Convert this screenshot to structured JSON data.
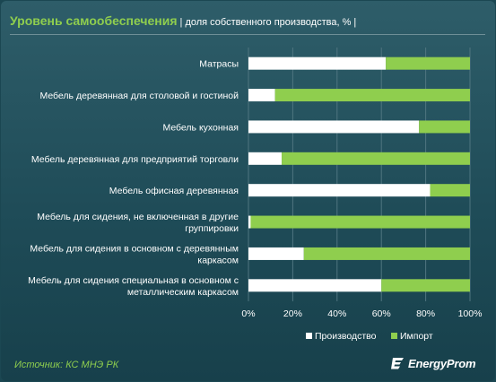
{
  "title": "Уровень самообеспечения",
  "subtitle": "| доля собственного производства, % |",
  "source": "Источник: КС МНЭ РК",
  "brand": "EnergyProm",
  "colors": {
    "production": "#ffffff",
    "import": "#8fce4e",
    "accent": "#8fce4e",
    "background": "#244f5b"
  },
  "chart_data": {
    "type": "bar",
    "orientation": "horizontal",
    "stacked": true,
    "categories": [
      [
        "Матрасы"
      ],
      [
        "Мебель деревянная для столовой и гостиной"
      ],
      [
        "Мебель кухонная"
      ],
      [
        "Мебель деревянная для предприятий торговли"
      ],
      [
        "Мебель офисная деревянная"
      ],
      [
        "Мебель для сидения, не включенная в другие",
        "группировки"
      ],
      [
        "Мебель для сидения в основном с деревянным",
        "каркасом"
      ],
      [
        "Мебель для сидения специальная в основном с",
        "металлическим каркасом"
      ]
    ],
    "series": [
      {
        "name": "Производство",
        "color": "#ffffff",
        "values": [
          62,
          12,
          77,
          15,
          82,
          1,
          25,
          60
        ]
      },
      {
        "name": "Импорт",
        "color": "#8fce4e",
        "values": [
          38,
          88,
          23,
          85,
          18,
          99,
          75,
          40
        ]
      }
    ],
    "xlim": [
      0,
      100
    ],
    "xticks": [
      "0%",
      "20%",
      "40%",
      "60%",
      "80%",
      "100%"
    ],
    "grid": true,
    "legend": "bottom"
  }
}
